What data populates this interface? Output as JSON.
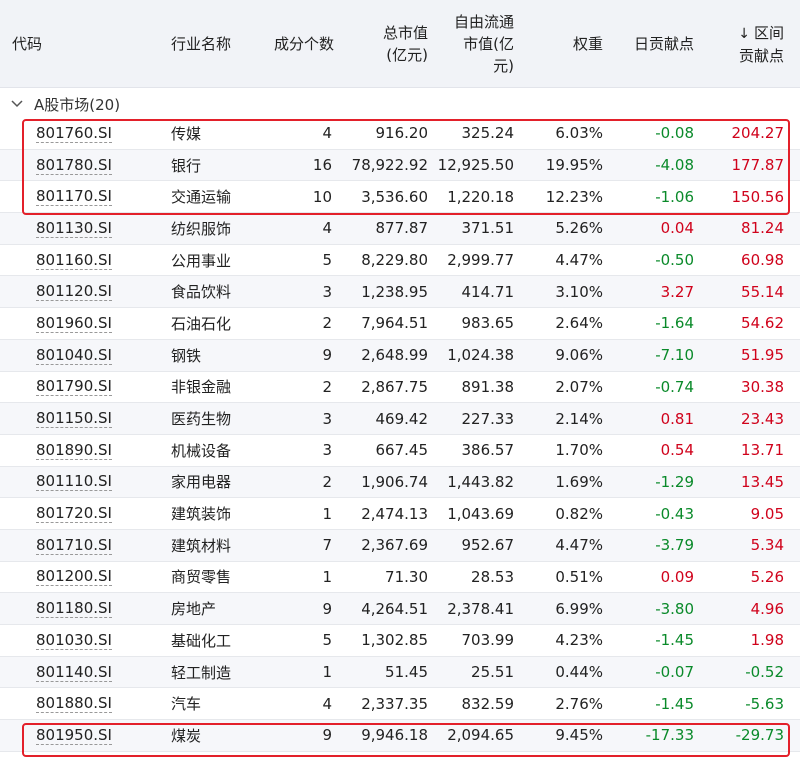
{
  "header": {
    "code": "代码",
    "industry": "行业名称",
    "count": "成分个数",
    "market_cap_l1": "总市值",
    "market_cap_l2": "(亿元)",
    "free_cap_l1": "自由流通",
    "free_cap_l2": "市值(亿",
    "free_cap_l3": "元)",
    "weight": "权重",
    "daily": "日贡献点",
    "range_arrow": "↓",
    "range_l1": "区间",
    "range_l2": "贡献点"
  },
  "group": {
    "label": "A股市场(20)"
  },
  "rows": [
    {
      "code": "801760.SI",
      "name": "传媒",
      "count": "4",
      "mv": "916.20",
      "fmv": "325.24",
      "w": "6.03%",
      "day": "-0.08",
      "rng": "204.27",
      "day_sign": "neg",
      "rng_sign": "pos"
    },
    {
      "code": "801780.SI",
      "name": "银行",
      "count": "16",
      "mv": "78,922.92",
      "fmv": "12,925.50",
      "w": "19.95%",
      "day": "-4.08",
      "rng": "177.87",
      "day_sign": "neg",
      "rng_sign": "pos"
    },
    {
      "code": "801170.SI",
      "name": "交通运输",
      "count": "10",
      "mv": "3,536.60",
      "fmv": "1,220.18",
      "w": "12.23%",
      "day": "-1.06",
      "rng": "150.56",
      "day_sign": "neg",
      "rng_sign": "pos"
    },
    {
      "code": "801130.SI",
      "name": "纺织服饰",
      "count": "4",
      "mv": "877.87",
      "fmv": "371.51",
      "w": "5.26%",
      "day": "0.04",
      "rng": "81.24",
      "day_sign": "pos",
      "rng_sign": "pos"
    },
    {
      "code": "801160.SI",
      "name": "公用事业",
      "count": "5",
      "mv": "8,229.80",
      "fmv": "2,999.77",
      "w": "4.47%",
      "day": "-0.50",
      "rng": "60.98",
      "day_sign": "neg",
      "rng_sign": "pos"
    },
    {
      "code": "801120.SI",
      "name": "食品饮料",
      "count": "3",
      "mv": "1,238.95",
      "fmv": "414.71",
      "w": "3.10%",
      "day": "3.27",
      "rng": "55.14",
      "day_sign": "pos",
      "rng_sign": "pos"
    },
    {
      "code": "801960.SI",
      "name": "石油石化",
      "count": "2",
      "mv": "7,964.51",
      "fmv": "983.65",
      "w": "2.64%",
      "day": "-1.64",
      "rng": "54.62",
      "day_sign": "neg",
      "rng_sign": "pos"
    },
    {
      "code": "801040.SI",
      "name": "钢铁",
      "count": "9",
      "mv": "2,648.99",
      "fmv": "1,024.38",
      "w": "9.06%",
      "day": "-7.10",
      "rng": "51.95",
      "day_sign": "neg",
      "rng_sign": "pos"
    },
    {
      "code": "801790.SI",
      "name": "非银金融",
      "count": "2",
      "mv": "2,867.75",
      "fmv": "891.38",
      "w": "2.07%",
      "day": "-0.74",
      "rng": "30.38",
      "day_sign": "neg",
      "rng_sign": "pos"
    },
    {
      "code": "801150.SI",
      "name": "医药生物",
      "count": "3",
      "mv": "469.42",
      "fmv": "227.33",
      "w": "2.14%",
      "day": "0.81",
      "rng": "23.43",
      "day_sign": "pos",
      "rng_sign": "pos"
    },
    {
      "code": "801890.SI",
      "name": "机械设备",
      "count": "3",
      "mv": "667.45",
      "fmv": "386.57",
      "w": "1.70%",
      "day": "0.54",
      "rng": "13.71",
      "day_sign": "pos",
      "rng_sign": "pos"
    },
    {
      "code": "801110.SI",
      "name": "家用电器",
      "count": "2",
      "mv": "1,906.74",
      "fmv": "1,443.82",
      "w": "1.69%",
      "day": "-1.29",
      "rng": "13.45",
      "day_sign": "neg",
      "rng_sign": "pos"
    },
    {
      "code": "801720.SI",
      "name": "建筑装饰",
      "count": "1",
      "mv": "2,474.13",
      "fmv": "1,043.69",
      "w": "0.82%",
      "day": "-0.43",
      "rng": "9.05",
      "day_sign": "neg",
      "rng_sign": "pos"
    },
    {
      "code": "801710.SI",
      "name": "建筑材料",
      "count": "7",
      "mv": "2,367.69",
      "fmv": "952.67",
      "w": "4.47%",
      "day": "-3.79",
      "rng": "5.34",
      "day_sign": "neg",
      "rng_sign": "pos"
    },
    {
      "code": "801200.SI",
      "name": "商贸零售",
      "count": "1",
      "mv": "71.30",
      "fmv": "28.53",
      "w": "0.51%",
      "day": "0.09",
      "rng": "5.26",
      "day_sign": "pos",
      "rng_sign": "pos"
    },
    {
      "code": "801180.SI",
      "name": "房地产",
      "count": "9",
      "mv": "4,264.51",
      "fmv": "2,378.41",
      "w": "6.99%",
      "day": "-3.80",
      "rng": "4.96",
      "day_sign": "neg",
      "rng_sign": "pos"
    },
    {
      "code": "801030.SI",
      "name": "基础化工",
      "count": "5",
      "mv": "1,302.85",
      "fmv": "703.99",
      "w": "4.23%",
      "day": "-1.45",
      "rng": "1.98",
      "day_sign": "neg",
      "rng_sign": "pos"
    },
    {
      "code": "801140.SI",
      "name": "轻工制造",
      "count": "1",
      "mv": "51.45",
      "fmv": "25.51",
      "w": "0.44%",
      "day": "-0.07",
      "rng": "-0.52",
      "day_sign": "neg",
      "rng_sign": "neg"
    },
    {
      "code": "801880.SI",
      "name": "汽车",
      "count": "4",
      "mv": "2,337.35",
      "fmv": "832.59",
      "w": "2.76%",
      "day": "-1.45",
      "rng": "-5.63",
      "day_sign": "neg",
      "rng_sign": "neg"
    },
    {
      "code": "801950.SI",
      "name": "煤炭",
      "count": "9",
      "mv": "9,946.18",
      "fmv": "2,094.65",
      "w": "9.45%",
      "day": "-17.33",
      "rng": "-29.73",
      "day_sign": "neg",
      "rng_sign": "neg"
    }
  ],
  "colors": {
    "positive": "#d0021b",
    "negative": "#0a8a2a",
    "highlight": "#e3202a",
    "header_bg": "#f1f3f7"
  }
}
